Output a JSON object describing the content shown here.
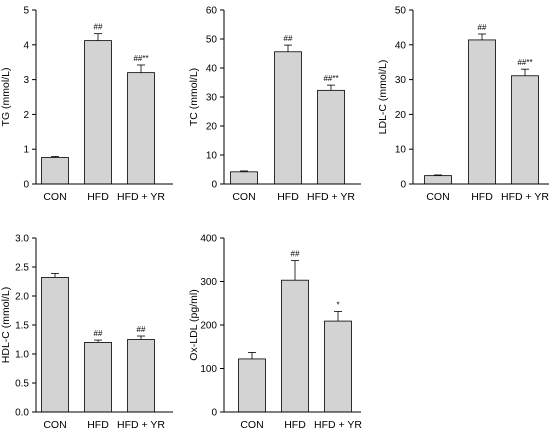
{
  "chart_data": [
    {
      "type": "bar",
      "title": "",
      "categories": [
        "CON",
        "HFD",
        "HFD + YR"
      ],
      "ylabel": "TG (mmol/L)",
      "xlabel": "",
      "ylim": [
        0,
        5
      ],
      "yticks": [
        0,
        1,
        2,
        3,
        4,
        5
      ],
      "tick_labels": [
        "0",
        "1",
        "2",
        "3",
        "4",
        "5"
      ],
      "values": [
        0.76,
        4.12,
        3.2
      ],
      "errors": [
        0.03,
        0.2,
        0.22
      ],
      "annotations": [
        "",
        "##",
        "##**"
      ],
      "bar_color": "#d3d3d3",
      "grid": false
    },
    {
      "type": "bar",
      "title": "",
      "categories": [
        "CON",
        "HFD",
        "HFD + YR"
      ],
      "ylabel": "TC (mmol/L)",
      "xlabel": "",
      "ylim": [
        0,
        60
      ],
      "yticks": [
        0,
        10,
        20,
        30,
        40,
        50,
        60
      ],
      "tick_labels": [
        "0",
        "10",
        "20",
        "30",
        "40",
        "50",
        "60"
      ],
      "values": [
        4.2,
        45.6,
        32.3
      ],
      "errors": [
        0.3,
        2.3,
        1.8
      ],
      "annotations": [
        "",
        "##",
        "##**"
      ],
      "bar_color": "#d3d3d3",
      "grid": false
    },
    {
      "type": "bar",
      "title": "",
      "categories": [
        "CON",
        "HFD",
        "HFD + YR"
      ],
      "ylabel": "LDL-C (mmol/L)",
      "xlabel": "",
      "ylim": [
        0,
        50
      ],
      "yticks": [
        0,
        10,
        20,
        30,
        40,
        50
      ],
      "tick_labels": [
        "0",
        "10",
        "20",
        "30",
        "40",
        "50"
      ],
      "values": [
        2.4,
        41.4,
        31.1
      ],
      "errors": [
        0.2,
        1.7,
        1.9
      ],
      "annotations": [
        "",
        "##",
        "##**"
      ],
      "bar_color": "#d3d3d3",
      "grid": false
    },
    {
      "type": "bar",
      "title": "",
      "categories": [
        "CON",
        "HFD",
        "HFD + YR"
      ],
      "ylabel": "HDL-C (mmol/L)",
      "xlabel": "",
      "ylim": [
        0,
        3.0
      ],
      "yticks": [
        0,
        0.5,
        1.0,
        1.5,
        2.0,
        2.5,
        3.0
      ],
      "tick_labels": [
        "0.0",
        "0.5",
        "1.0",
        "1.5",
        "2.0",
        "2.5",
        "3.0"
      ],
      "values": [
        2.32,
        1.2,
        1.25
      ],
      "errors": [
        0.07,
        0.04,
        0.06
      ],
      "annotations": [
        "",
        "##",
        "##"
      ],
      "bar_color": "#d3d3d3",
      "grid": false
    },
    {
      "type": "bar",
      "title": "",
      "categories": [
        "CON",
        "HFD",
        "HFD + YR"
      ],
      "ylabel": "Ox-LDL (pg/ml)",
      "xlabel": "",
      "ylim": [
        0,
        400
      ],
      "yticks": [
        0,
        100,
        200,
        300,
        400
      ],
      "tick_labels": [
        "0",
        "100",
        "200",
        "300",
        "400"
      ],
      "values": [
        122,
        303,
        209
      ],
      "errors": [
        15,
        45,
        22
      ],
      "annotations": [
        "",
        "##",
        "*"
      ],
      "bar_color": "#d3d3d3",
      "grid": false
    }
  ]
}
